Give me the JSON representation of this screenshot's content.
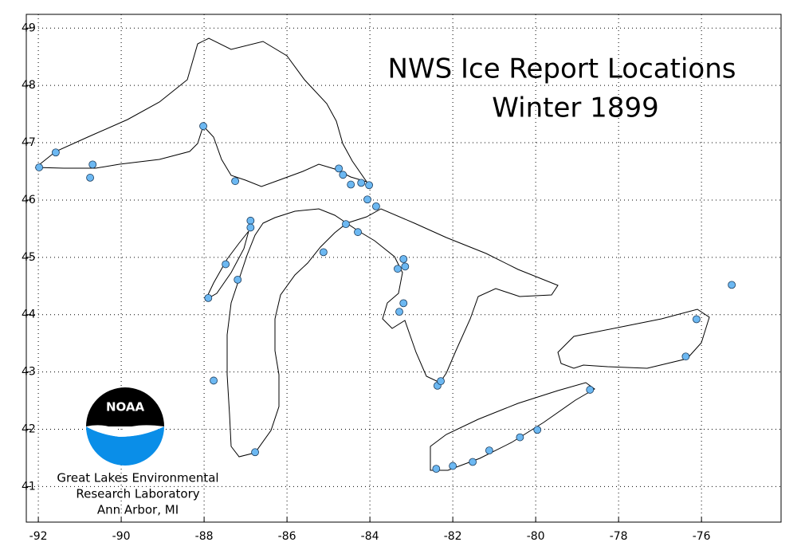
{
  "chart_data": {
    "type": "scatter",
    "title": "NWS Ice Report Locations",
    "subtitle": "Winter 1899",
    "annotations": [
      "NOAA",
      "Great Lakes Environmental",
      "Research Laboratory",
      "Ann Arbor, MI"
    ],
    "color": "#6cb8f2",
    "x": [
      -91.98,
      -91.58,
      -90.69,
      -90.75,
      -88.02,
      -87.25,
      -84.75,
      -84.65,
      -84.46,
      -84.21,
      -84.02,
      -84.06,
      -83.85,
      -86.88,
      -86.88,
      -87.48,
      -87.19,
      -87.9,
      -87.77,
      -86.77,
      -85.12,
      -84.58,
      -84.29,
      -83.33,
      -83.19,
      -83.15,
      -83.19,
      -83.29,
      -82.37,
      -82.29,
      -82.4,
      -82.0,
      -81.52,
      -81.12,
      -80.38,
      -79.96,
      -78.69,
      -76.38,
      -76.12,
      -75.27
    ],
    "values": [
      46.57,
      46.83,
      46.62,
      46.39,
      47.29,
      46.33,
      46.55,
      46.44,
      46.27,
      46.3,
      46.26,
      46.01,
      45.89,
      45.64,
      45.52,
      44.88,
      44.61,
      44.29,
      42.85,
      41.6,
      45.09,
      45.58,
      45.44,
      44.8,
      44.97,
      44.84,
      44.2,
      44.05,
      42.76,
      42.84,
      41.31,
      41.36,
      41.43,
      41.63,
      41.86,
      41.99,
      42.69,
      43.27,
      43.92,
      44.52
    ],
    "xlim": [
      -92.29,
      -74.08
    ],
    "ylim": [
      40.38,
      49.24
    ],
    "xticks": [
      -92,
      -90,
      -88,
      -86,
      -84,
      -82,
      -80,
      -78,
      -76
    ],
    "yticks": [
      41,
      42,
      43,
      44,
      45,
      46,
      47,
      48,
      49
    ],
    "grid": true
  }
}
